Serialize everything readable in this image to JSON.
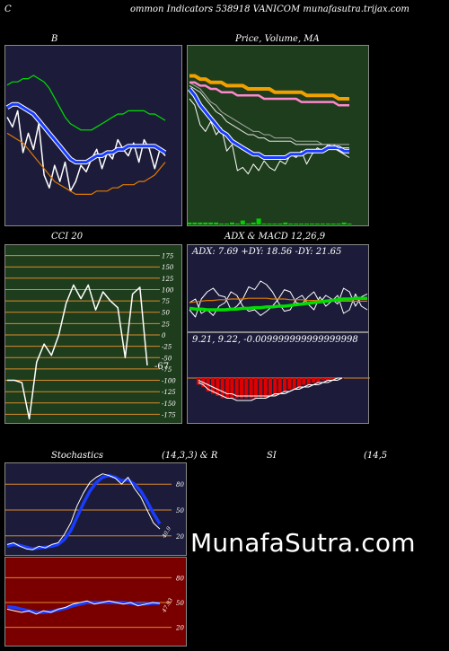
{
  "header": {
    "title": "ommon  Indicators 538918  VANICOM munafasutra.trijax.com",
    "left_cut": "C",
    "right_cut": ""
  },
  "colors": {
    "dark_panel": "#1c1c3a",
    "green_panel": "#1e3d1c",
    "cci_panel": "#1e3d1c",
    "rsi_panel": "#7a0000",
    "line_white": "#ffffff",
    "line_blue": "#1a3cff",
    "line_green": "#00e000",
    "line_orange": "#e07b00",
    "grid_orange": "#d98a2b"
  },
  "brand": {
    "text": "MunafaSutra.com"
  },
  "chart_data": [
    {
      "id": "bollinger",
      "type": "line",
      "title": "B",
      "series": [
        {
          "name": "",
          "color": "#ffffff",
          "values": [
            60,
            57,
            62,
            49,
            55,
            50,
            58,
            42,
            38,
            45,
            40,
            46,
            37,
            40,
            45,
            43,
            47,
            50,
            44,
            49,
            47,
            53,
            50,
            48,
            52,
            46,
            53,
            50,
            44,
            50,
            48
          ]
        },
        {
          "name": "",
          "color": "#1a3cff",
          "values": [
            63,
            64,
            64,
            63,
            62,
            61,
            59,
            57,
            55,
            53,
            51,
            49,
            47,
            46,
            46,
            46,
            47,
            48,
            48,
            49,
            49,
            50,
            50,
            51,
            51,
            51,
            51,
            51,
            51,
            50,
            49
          ]
        },
        {
          "name": "",
          "color": "#00e000",
          "values": [
            70,
            71,
            71,
            72,
            72,
            73,
            72,
            71,
            69,
            66,
            63,
            60,
            58,
            57,
            56,
            56,
            56,
            57,
            58,
            59,
            60,
            61,
            61,
            62,
            62,
            62,
            62,
            61,
            61,
            60,
            59
          ]
        },
        {
          "name": "",
          "color": "#e07b00",
          "values": [
            55,
            54,
            53,
            52,
            50,
            48,
            46,
            44,
            42,
            40,
            39,
            38,
            37,
            36,
            36,
            36,
            36,
            37,
            37,
            37,
            38,
            38,
            39,
            39,
            39,
            40,
            40,
            41,
            42,
            44,
            46
          ]
        }
      ],
      "ylim": [
        28,
        80
      ]
    },
    {
      "id": "price",
      "type": "line",
      "title": "Price,  Volume,  MA",
      "series": [
        {
          "name": "",
          "color": "#ffffff",
          "values": [
            66,
            64,
            58,
            56,
            59,
            55,
            57,
            50,
            52,
            44,
            45,
            43,
            46,
            44,
            47,
            45,
            44,
            47,
            46,
            49,
            48,
            50,
            46,
            49,
            51,
            50,
            52,
            51,
            50,
            49,
            48
          ]
        },
        {
          "name": "",
          "color": "#1a3cff",
          "values": [
            69,
            67,
            64,
            62,
            60,
            58,
            56,
            55,
            53,
            52,
            51,
            50,
            49,
            49,
            48,
            48,
            48,
            48,
            48,
            49,
            49,
            49,
            50,
            50,
            50,
            50,
            51,
            51,
            51,
            50,
            50
          ]
        },
        {
          "name": "",
          "color": "#e8e8e8",
          "values": [
            70,
            69,
            68,
            66,
            64,
            62,
            61,
            59,
            58,
            57,
            56,
            55,
            55,
            54,
            54,
            53,
            53,
            53,
            53,
            53,
            52,
            52,
            52,
            52,
            52,
            52,
            52,
            52,
            51,
            51,
            51
          ]
        },
        {
          "name": "",
          "color": "#aaaaaa",
          "values": [
            71,
            70,
            69,
            67,
            65,
            64,
            62,
            61,
            60,
            59,
            58,
            57,
            56,
            56,
            55,
            55,
            54,
            54,
            54,
            54,
            53,
            53,
            53,
            53,
            53,
            52,
            52,
            52,
            52,
            52,
            52
          ]
        },
        {
          "name": "",
          "color": "#ff88cc",
          "values": [
            71,
            71,
            70,
            70,
            69,
            69,
            68,
            68,
            68,
            67,
            67,
            67,
            67,
            67,
            66,
            66,
            66,
            66,
            66,
            66,
            66,
            65,
            65,
            65,
            65,
            65,
            65,
            65,
            64,
            64,
            64
          ]
        },
        {
          "name": "",
          "color": "#f0a000",
          "values": [
            73,
            73,
            72,
            72,
            71,
            71,
            71,
            70,
            70,
            70,
            70,
            69,
            69,
            69,
            69,
            69,
            68,
            68,
            68,
            68,
            68,
            68,
            67,
            67,
            67,
            67,
            67,
            67,
            66,
            66,
            66
          ]
        }
      ],
      "volume": [
        1,
        1,
        1,
        1,
        1,
        1,
        0.5,
        0.5,
        1,
        0.5,
        2,
        0.5,
        1,
        3,
        0.5,
        0.5,
        0.5,
        0.5,
        1,
        0.5,
        0.5,
        0.5,
        0.5,
        0.5,
        0.5,
        0.5,
        0.5,
        0.5,
        0.5,
        1,
        0.5
      ],
      "ylim": [
        30,
        80
      ]
    },
    {
      "id": "cci",
      "type": "line",
      "title": "CCI 20",
      "series": [
        {
          "name": "",
          "color": "#ffffff",
          "values": [
            -100,
            -100,
            -105,
            -185,
            -60,
            -20,
            -45,
            0,
            70,
            110,
            80,
            110,
            55,
            95,
            75,
            60,
            -50,
            90,
            105,
            -67
          ]
        }
      ],
      "yticks": [
        175,
        150,
        125,
        100,
        75,
        50,
        25,
        0,
        -25,
        -50,
        -75,
        -100,
        -125,
        -150,
        -175
      ],
      "last_label": "-67",
      "ylim": [
        -190,
        190
      ]
    },
    {
      "id": "adx_macd",
      "type": "line",
      "title": "ADX  & MACD 12,26,9",
      "adx_label": "ADX: 7.69 +DY: 18.56  -DY: 21.65",
      "macd_label": "9.21,  9.22,  -0.009999999999999998",
      "adx_series": [
        {
          "name": "",
          "color": "#ffffff",
          "values": [
            30,
            20,
            45,
            55,
            60,
            50,
            48,
            30,
            35,
            45,
            62,
            58,
            70,
            65,
            55,
            40,
            28,
            30,
            45,
            50,
            38,
            30,
            48,
            35,
            42,
            50,
            25,
            30,
            52,
            35,
            30
          ]
        },
        {
          "name": "",
          "color": "#ffffff",
          "values": [
            40,
            45,
            25,
            30,
            22,
            35,
            40,
            55,
            50,
            35,
            28,
            30,
            22,
            28,
            35,
            45,
            58,
            55,
            40,
            38,
            48,
            55,
            40,
            50,
            45,
            38,
            60,
            55,
            35,
            48,
            52
          ]
        },
        {
          "name": "",
          "color": "#e07b00",
          "values": [
            40,
            41,
            42,
            43,
            43,
            44,
            44,
            45,
            45,
            45,
            46,
            46,
            46,
            46,
            45,
            45,
            45,
            44,
            44,
            44,
            43,
            43,
            43,
            43,
            42,
            42,
            42,
            42,
            42,
            42,
            42
          ]
        },
        {
          "name": "",
          "color": "#00e000",
          "values": [
            32,
            31,
            31,
            30,
            30,
            30,
            30,
            31,
            31,
            32,
            32,
            33,
            33,
            34,
            34,
            35,
            35,
            36,
            37,
            38,
            39,
            40,
            41,
            42,
            43,
            44,
            45,
            45,
            46,
            46,
            46
          ]
        }
      ],
      "macd_hist": [
        -3,
        -4,
        -6,
        -7,
        -8,
        -9,
        -9,
        -9,
        -9,
        -9,
        -9,
        -9,
        -9,
        -9,
        -9,
        -8,
        -8,
        -7,
        -6,
        -5,
        -5,
        -4,
        -3,
        -3,
        -2,
        -2,
        -1,
        -1,
        -1,
        0,
        0
      ],
      "macd_line": [
        -2,
        -3,
        -5,
        -6,
        -7,
        -8,
        -9,
        -9,
        -10,
        -10,
        -10,
        -10,
        -9,
        -9,
        -9,
        -8,
        -8,
        -7,
        -7,
        -6,
        -5,
        -4,
        -4,
        -3,
        -3,
        -2,
        -2,
        -1,
        -1,
        0,
        0
      ],
      "signal_line": [
        -1,
        -2,
        -3,
        -4,
        -5,
        -6,
        -7,
        -7,
        -8,
        -8,
        -8,
        -8,
        -8,
        -8,
        -8,
        -8,
        -7,
        -7,
        -6,
        -6,
        -5,
        -5,
        -4,
        -4,
        -3,
        -3,
        -2,
        -2,
        -1,
        -1,
        0
      ]
    },
    {
      "id": "stochastics",
      "type": "line",
      "title": "Stochastics",
      "params": "(14,3,3) & R",
      "series": [
        {
          "name": "",
          "color": "#ffffff",
          "values": [
            10,
            12,
            8,
            5,
            4,
            8,
            6,
            10,
            12,
            22,
            35,
            55,
            70,
            82,
            88,
            92,
            90,
            87,
            80,
            88,
            75,
            65,
            50,
            35,
            28
          ]
        },
        {
          "name": "",
          "color": "#1a3cff",
          "values": [
            8,
            10,
            9,
            7,
            5,
            6,
            7,
            8,
            10,
            16,
            26,
            42,
            58,
            72,
            82,
            88,
            90,
            88,
            84,
            85,
            80,
            72,
            60,
            46,
            34
          ]
        }
      ],
      "levels": [
        80,
        50,
        20
      ],
      "level_labels": [
        "80",
        "50",
        "20"
      ],
      "end_label": "40.9",
      "ylim": [
        0,
        100
      ]
    },
    {
      "id": "rsi",
      "type": "line",
      "title": "SI",
      "params": "(14,5",
      "series": [
        {
          "name": "",
          "color": "#ffffff",
          "values": [
            42,
            40,
            38,
            40,
            36,
            40,
            38,
            42,
            44,
            48,
            50,
            52,
            48,
            50,
            52,
            50,
            48,
            50,
            46,
            48,
            50,
            49
          ]
        },
        {
          "name": "",
          "color": "#1a3cff",
          "values": [
            45,
            44,
            42,
            40,
            38,
            38,
            39,
            41,
            43,
            46,
            48,
            50,
            50,
            50,
            50,
            50,
            50,
            49,
            48,
            48,
            49,
            49
          ]
        }
      ],
      "levels": [
        80,
        50,
        20
      ],
      "level_labels": [
        "80",
        "50",
        "20"
      ],
      "end_label": "47.93",
      "ylim": [
        0,
        100
      ]
    }
  ]
}
